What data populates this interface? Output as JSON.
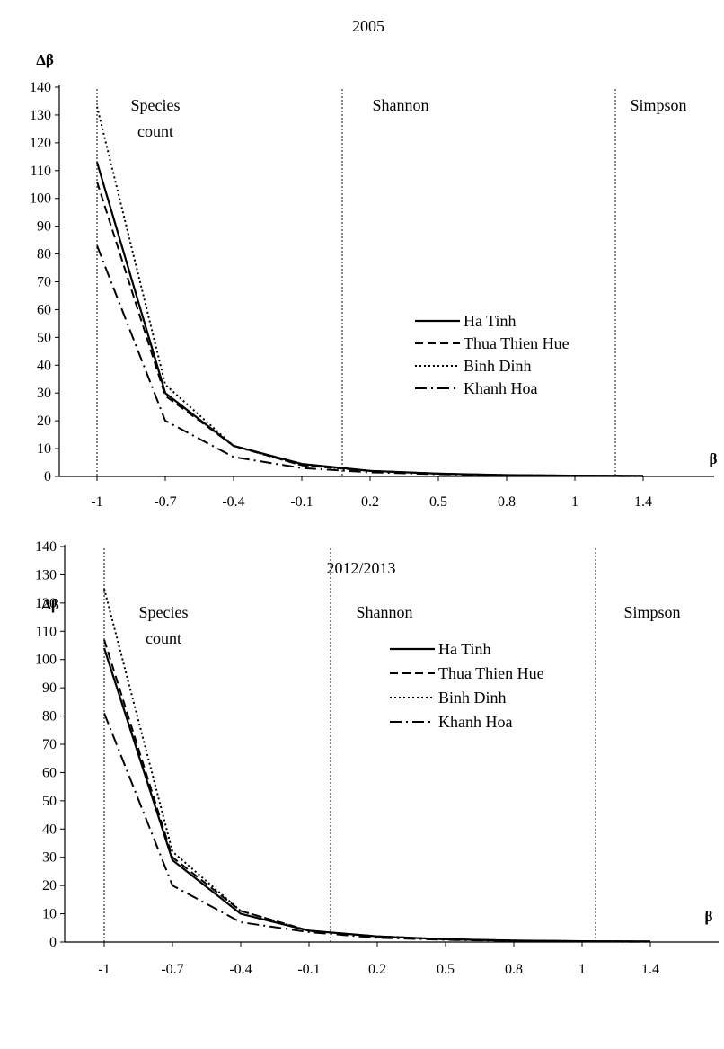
{
  "chart_data": [
    {
      "type": "line",
      "title": "2005",
      "ylabel": "Δβ",
      "xlabel": "β",
      "x": [
        -1,
        -0.7,
        -0.4,
        -0.1,
        0.2,
        0.5,
        0.8,
        1,
        1.4
      ],
      "x_tick_labels": [
        "-1",
        "-0.7",
        "-0.4",
        "-0.1",
        "0.2",
        "0.5",
        "0.8",
        "1",
        "1.4"
      ],
      "y_ticks": [
        0,
        10,
        20,
        30,
        40,
        50,
        60,
        70,
        80,
        90,
        100,
        110,
        120,
        130,
        140
      ],
      "ylim": [
        0,
        140
      ],
      "region_labels": [
        {
          "lines": [
            "Species",
            "count"
          ],
          "at_x": -1
        },
        {
          "lines": [
            "Shannon"
          ],
          "at_x": 0
        },
        {
          "lines": [
            "Simpson"
          ],
          "at_x": 1
        }
      ],
      "vertical_markers": [
        -1,
        0,
        1
      ],
      "legend_position": "center-right",
      "series": [
        {
          "name": "Ha Tinh",
          "style": "solid",
          "values": [
            113,
            30,
            11,
            4.5,
            2,
            1,
            0.5,
            0.3,
            0.2
          ]
        },
        {
          "name": "Thua Thien Hue",
          "style": "dashed",
          "values": [
            106,
            29,
            11,
            4,
            2,
            1,
            0.5,
            0.3,
            0.2
          ]
        },
        {
          "name": "Binh Dinh",
          "style": "dotted",
          "values": [
            133,
            33,
            11,
            4,
            2,
            1,
            0.5,
            0.3,
            0.2
          ]
        },
        {
          "name": "Khanh Hoa",
          "style": "dashdot",
          "values": [
            83,
            20,
            7,
            3,
            1.5,
            0.8,
            0.4,
            0.2,
            0.1
          ]
        }
      ]
    },
    {
      "type": "line",
      "title": "2012/2013",
      "ylabel": "Δβ",
      "xlabel": "β",
      "x": [
        -1,
        -0.7,
        -0.4,
        -0.1,
        0.2,
        0.5,
        0.8,
        1,
        1.4
      ],
      "x_tick_labels": [
        "-1",
        "-0.7",
        "-0.4",
        "-0.1",
        "0.2",
        "0.5",
        "0.8",
        "1",
        "1.4"
      ],
      "y_ticks": [
        0,
        10,
        20,
        30,
        40,
        50,
        60,
        70,
        80,
        90,
        100,
        110,
        120,
        130,
        140
      ],
      "ylim": [
        0,
        140
      ],
      "region_labels": [
        {
          "lines": [
            "Species",
            "count"
          ],
          "at_x": -1
        },
        {
          "lines": [
            "Shannon"
          ],
          "at_x": 0
        },
        {
          "lines": [
            "Simpson"
          ],
          "at_x": 1
        }
      ],
      "vertical_markers": [
        -1,
        0,
        1
      ],
      "legend_position": "center-right",
      "series": [
        {
          "name": "Ha Tinh",
          "style": "solid",
          "values": [
            104,
            29,
            10,
            4,
            2,
            1,
            0.5,
            0.3,
            0.2
          ]
        },
        {
          "name": "Thua Thien Hue",
          "style": "dashed",
          "values": [
            107,
            30,
            11,
            4,
            2,
            1,
            0.5,
            0.3,
            0.2
          ]
        },
        {
          "name": "Binh Dinh",
          "style": "dotted",
          "values": [
            125,
            32,
            11,
            4,
            2,
            1,
            0.5,
            0.3,
            0.2
          ]
        },
        {
          "name": "Khanh Hoa",
          "style": "dashdot",
          "values": [
            81,
            20,
            7,
            3.5,
            1.5,
            0.8,
            0.4,
            0.2,
            0.1
          ]
        }
      ]
    }
  ]
}
